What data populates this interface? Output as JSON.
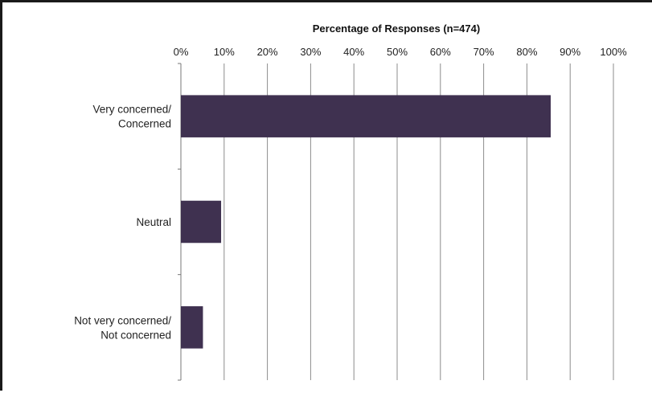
{
  "chart_data": {
    "type": "bar",
    "orientation": "horizontal",
    "title": "",
    "xlabel": "Percentage of Responses (n=474)",
    "ylabel": "",
    "xlim": [
      0,
      100
    ],
    "x_ticks": [
      "0%",
      "10%",
      "20%",
      "30%",
      "40%",
      "50%",
      "60%",
      "70%",
      "80%",
      "90%",
      "100%"
    ],
    "x_axis_position": "top",
    "grid": true,
    "legend": "none",
    "categories": [
      [
        "Very concerned/",
        "Concerned"
      ],
      [
        "Neutral"
      ],
      [
        "Not very concerned/",
        "Not concerned"
      ]
    ],
    "values": [
      85.5,
      9.3,
      5.1
    ],
    "bar_color": "#3f3150",
    "grid_color": "#8c8c8c"
  }
}
